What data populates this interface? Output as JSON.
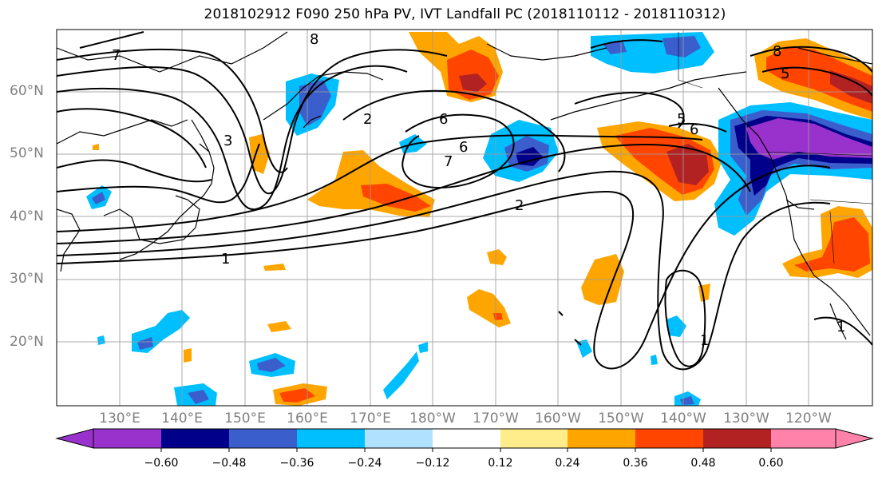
{
  "title": "2018102912 F090 250 hPa PV, IVT Landfall PC (2018110112 - 2018110312)",
  "lat_labels": [
    "60°N",
    "50°N",
    "40°N",
    "30°N",
    "20°N"
  ],
  "lon_labels": [
    "130°E",
    "140°E",
    "150°E",
    "160°E",
    "170°E",
    "180°W",
    "170°W",
    "160°W",
    "150°W",
    "140°W",
    "130°W",
    "120°W"
  ],
  "contour_labels": [
    "8",
    "7",
    "6",
    "5",
    "7",
    "6",
    "2",
    "1",
    "1",
    "1",
    "8",
    "6",
    "5",
    "2",
    "3"
  ],
  "colorbar": {
    "ticks": [
      "−0.60",
      "−0.48",
      "−0.36",
      "−0.24",
      "−0.12",
      "0.12",
      "0.24",
      "0.36",
      "0.48",
      "0.60"
    ],
    "colors": [
      "#9932cc",
      "#00008b",
      "#3a5fcd",
      "#00bfff",
      "#b0e2ff",
      "#ffffff",
      "#ffec8b",
      "#ffa500",
      "#ff4500",
      "#b22222",
      "#ff82ab"
    ]
  },
  "map": {
    "projection": "PlateCarree",
    "lon_range": [
      "120°E",
      "110°W"
    ],
    "lat_range": [
      "10°N",
      "70°N"
    ]
  }
}
